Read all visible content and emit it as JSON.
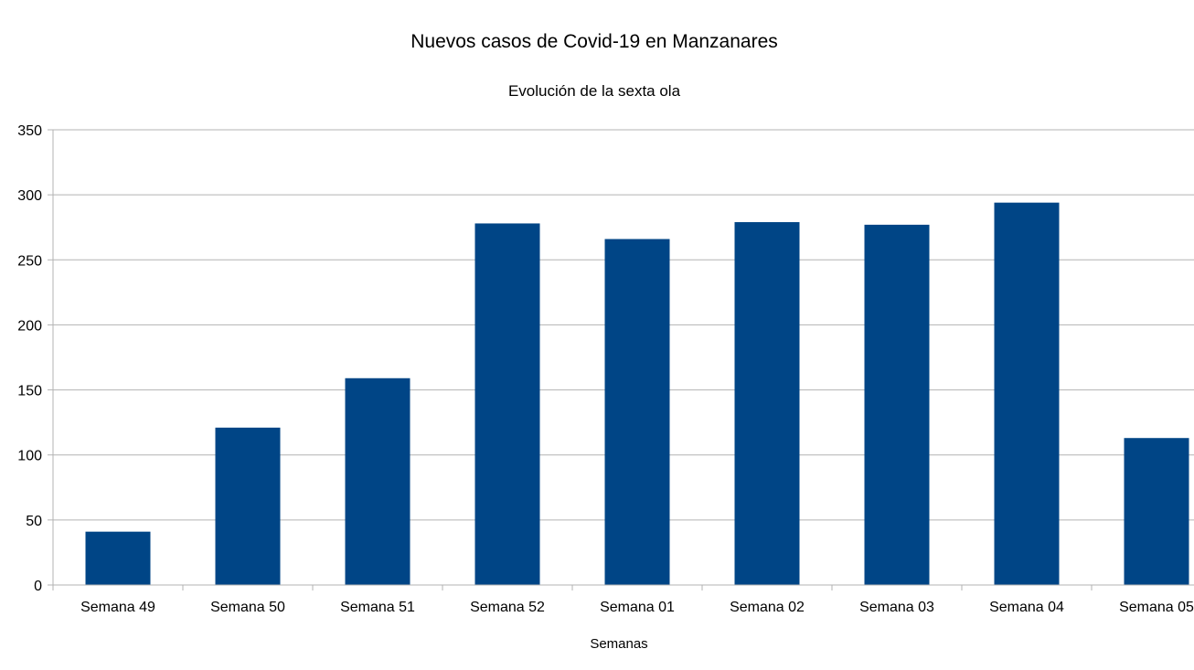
{
  "chart_data": {
    "type": "bar",
    "title": "Nuevos casos de Covid-19 en Manzanares",
    "subtitle": "Evolución de la sexta ola",
    "xlabel": "Semanas",
    "ylabel": "",
    "categories": [
      "Semana 49",
      "Semana 50",
      "Semana 51",
      "Semana 52",
      "Semana 01",
      "Semana 02",
      "Semana 03",
      "Semana 04",
      "Semana 05"
    ],
    "series": [
      {
        "values": [
          41,
          121,
          159,
          278,
          266,
          279,
          277,
          294,
          113
        ],
        "color": "#004586"
      }
    ],
    "ylim": [
      0,
      350
    ],
    "yticks": [
      0,
      50,
      100,
      150,
      200,
      250,
      300,
      350
    ],
    "grid": true,
    "legend": "none"
  },
  "colors": {
    "bar": "#004586",
    "grid": "#b3b3b3",
    "axis": "#b3b3b3",
    "text": "#000000",
    "background": "#ffffff"
  }
}
